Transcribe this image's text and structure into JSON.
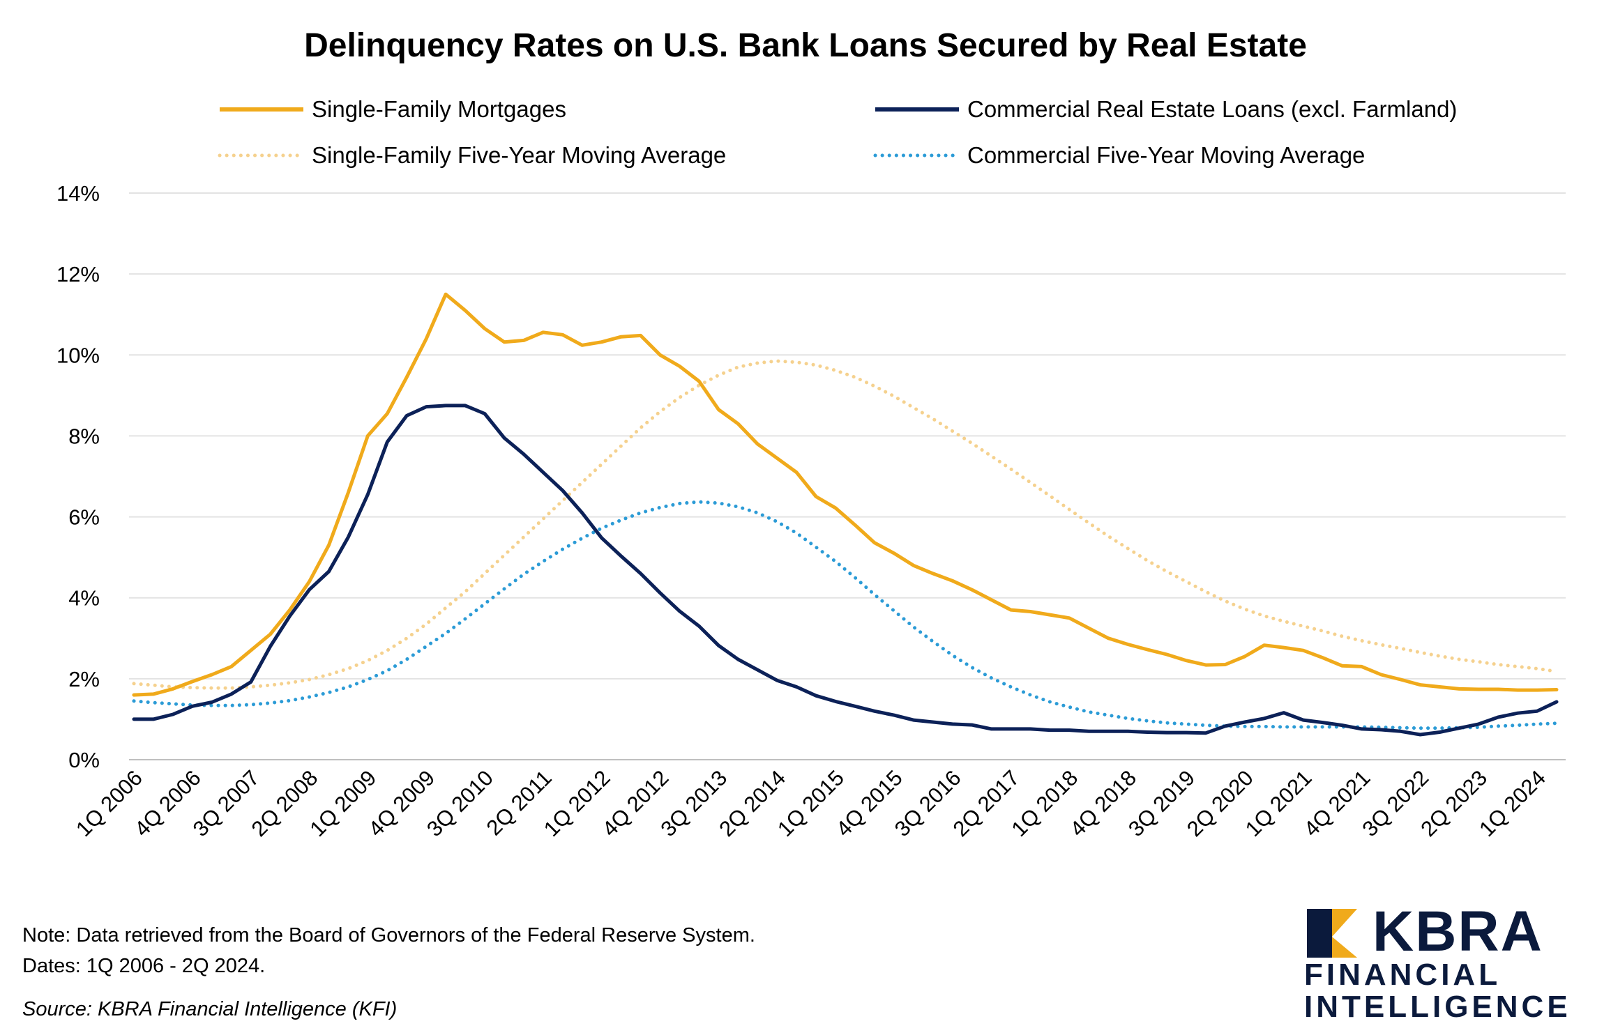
{
  "chart_data": {
    "type": "line",
    "title": "Delinquency Rates on U.S. Bank Loans Secured by Real Estate",
    "xlabel": "",
    "ylabel": "",
    "ylim": [
      0,
      14
    ],
    "yticks": [
      "0%",
      "2%",
      "4%",
      "6%",
      "8%",
      "10%",
      "12%",
      "14%"
    ],
    "ytick_values": [
      0,
      2,
      4,
      6,
      8,
      10,
      12,
      14
    ],
    "xtick_labels": [
      "1Q 2006",
      "4Q 2006",
      "3Q 2007",
      "2Q 2008",
      "1Q 2009",
      "4Q 2009",
      "3Q 2010",
      "2Q 2011",
      "1Q 2012",
      "4Q 2012",
      "3Q 2013",
      "2Q 2014",
      "1Q 2015",
      "4Q 2015",
      "3Q 2016",
      "2Q 2017",
      "1Q 2018",
      "4Q 2018",
      "3Q 2019",
      "2Q 2020",
      "1Q 2021",
      "4Q 2021",
      "3Q 2022",
      "2Q 2023",
      "1Q 2024"
    ],
    "x_start": "1Q 2006",
    "x_end": "2Q 2024",
    "legend_position": "top",
    "grid": true,
    "series": [
      {
        "name": "Single-Family Mortgages",
        "color": "#f0aa1b",
        "style": "solid",
        "values": [
          1.6,
          1.62,
          1.75,
          1.93,
          2.1,
          2.3,
          2.7,
          3.1,
          3.7,
          4.4,
          5.3,
          6.6,
          8.0,
          8.55,
          9.45,
          10.4,
          11.5,
          11.1,
          10.65,
          10.32,
          10.36,
          10.56,
          10.5,
          10.24,
          10.32,
          10.45,
          10.48,
          10.0,
          9.72,
          9.35,
          8.65,
          8.3,
          7.8,
          7.45,
          7.1,
          6.5,
          6.22,
          5.8,
          5.36,
          5.1,
          4.8,
          4.6,
          4.42,
          4.2,
          3.95,
          3.7,
          3.66,
          3.58,
          3.5,
          3.25,
          3.0,
          2.85,
          2.72,
          2.6,
          2.45,
          2.34,
          2.35,
          2.55,
          2.83,
          2.77,
          2.7,
          2.52,
          2.32,
          2.3,
          2.1,
          1.98,
          1.85,
          1.8,
          1.75,
          1.74,
          1.74,
          1.72,
          1.72,
          1.73
        ]
      },
      {
        "name": "Commercial Real Estate Loans (excl. Farmland)",
        "color": "#0c2158",
        "style": "solid",
        "values": [
          1.0,
          1.0,
          1.12,
          1.32,
          1.42,
          1.62,
          1.92,
          2.8,
          3.55,
          4.2,
          4.65,
          5.5,
          6.55,
          7.85,
          8.5,
          8.72,
          8.75,
          8.75,
          8.55,
          7.95,
          7.55,
          7.1,
          6.65,
          6.1,
          5.48,
          5.03,
          4.6,
          4.12,
          3.67,
          3.3,
          2.82,
          2.48,
          2.22,
          1.96,
          1.8,
          1.58,
          1.44,
          1.32,
          1.2,
          1.1,
          0.98,
          0.93,
          0.88,
          0.86,
          0.76,
          0.76,
          0.76,
          0.73,
          0.73,
          0.7,
          0.7,
          0.7,
          0.68,
          0.67,
          0.67,
          0.66,
          0.83,
          0.93,
          1.02,
          1.16,
          0.98,
          0.92,
          0.85,
          0.76,
          0.74,
          0.7,
          0.62,
          0.68,
          0.78,
          0.88,
          1.05,
          1.15,
          1.2,
          1.43
        ]
      },
      {
        "name": "Single-Family Five-Year Moving Average",
        "color": "#f5d18e",
        "style": "dotted",
        "values": [
          1.88,
          1.84,
          1.8,
          1.78,
          1.77,
          1.77,
          1.8,
          1.84,
          1.9,
          1.98,
          2.1,
          2.25,
          2.45,
          2.7,
          3.0,
          3.35,
          3.75,
          4.15,
          4.6,
          5.05,
          5.5,
          5.95,
          6.4,
          6.85,
          7.3,
          7.75,
          8.2,
          8.6,
          8.95,
          9.25,
          9.5,
          9.7,
          9.8,
          9.85,
          9.82,
          9.75,
          9.62,
          9.45,
          9.23,
          8.98,
          8.7,
          8.42,
          8.12,
          7.82,
          7.5,
          7.18,
          6.85,
          6.52,
          6.18,
          5.85,
          5.52,
          5.22,
          4.92,
          4.65,
          4.4,
          4.15,
          3.92,
          3.72,
          3.55,
          3.42,
          3.3,
          3.18,
          3.05,
          2.94,
          2.84,
          2.75,
          2.65,
          2.56,
          2.48,
          2.42,
          2.35,
          2.3,
          2.25,
          2.18
        ]
      },
      {
        "name": "Commercial Five-Year Moving Average",
        "color": "#2b9bd6",
        "style": "dotted",
        "values": [
          1.45,
          1.41,
          1.38,
          1.35,
          1.34,
          1.34,
          1.36,
          1.4,
          1.46,
          1.55,
          1.66,
          1.8,
          1.98,
          2.2,
          2.48,
          2.8,
          3.12,
          3.48,
          3.85,
          4.22,
          4.58,
          4.9,
          5.2,
          5.47,
          5.72,
          5.92,
          6.1,
          6.23,
          6.33,
          6.37,
          6.34,
          6.25,
          6.1,
          5.88,
          5.6,
          5.25,
          4.9,
          4.5,
          4.08,
          3.68,
          3.28,
          2.92,
          2.58,
          2.28,
          2.02,
          1.8,
          1.6,
          1.43,
          1.3,
          1.18,
          1.1,
          1.02,
          0.96,
          0.91,
          0.88,
          0.85,
          0.83,
          0.82,
          0.82,
          0.81,
          0.81,
          0.81,
          0.81,
          0.81,
          0.8,
          0.79,
          0.78,
          0.78,
          0.79,
          0.8,
          0.83,
          0.85,
          0.88,
          0.9
        ]
      }
    ],
    "note_line1": "Note: Data retrieved from the Board of Governors of the Federal Reserve System.",
    "note_line2": "Dates: 1Q 2006 - 2Q 2024.",
    "source": "Source: KBRA Financial Intelligence (KFI)"
  },
  "brand": {
    "name": "KBRA",
    "line1": "FINANCIAL",
    "line2": "INTELLIGENCE",
    "primary_color": "#0b1a3c",
    "accent_color": "#f0aa1b"
  }
}
